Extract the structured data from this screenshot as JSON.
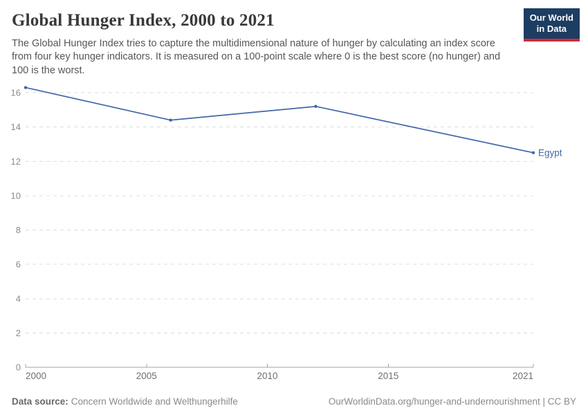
{
  "header": {
    "title": "Global Hunger Index, 2000 to 2021",
    "subtitle": "The Global Hunger Index tries to capture the multidimensional nature of hunger by calculating an index score\nfrom four key hunger indicators. It is measured on a 100-point scale where 0 is the best score (no hunger) and\n100 is the worst."
  },
  "logo": {
    "line1": "Our World",
    "line2": "in Data",
    "bg_color": "#1d3d63",
    "bar_color": "#cb2d3a"
  },
  "chart_data": {
    "type": "line",
    "title": "Global Hunger Index, 2000 to 2021",
    "xlabel": "",
    "ylabel": "",
    "x_ticks": [
      2000,
      2005,
      2010,
      2015,
      2021
    ],
    "y_ticks": [
      0,
      2,
      4,
      6,
      8,
      10,
      12,
      14,
      16
    ],
    "xlim": [
      2000,
      2021
    ],
    "ylim": [
      0,
      16
    ],
    "grid": true,
    "series": [
      {
        "name": "Egypt",
        "color": "#4266a8",
        "x": [
          2000,
          2006,
          2012,
          2021
        ],
        "values": [
          16.3,
          14.4,
          15.2,
          12.5
        ]
      }
    ],
    "end_label": "Egypt"
  },
  "colors": {
    "grid": "#dcdcdc",
    "axis": "#a3a3a3",
    "y_tick_text": "#8c8c8c",
    "x_tick_text": "#6f6f6f"
  },
  "footer": {
    "source_label": "Data source:",
    "source_value": "Concern Worldwide and Welthungerhilfe",
    "link": "OurWorldinData.org/hunger-and-undernourishment | CC BY"
  }
}
